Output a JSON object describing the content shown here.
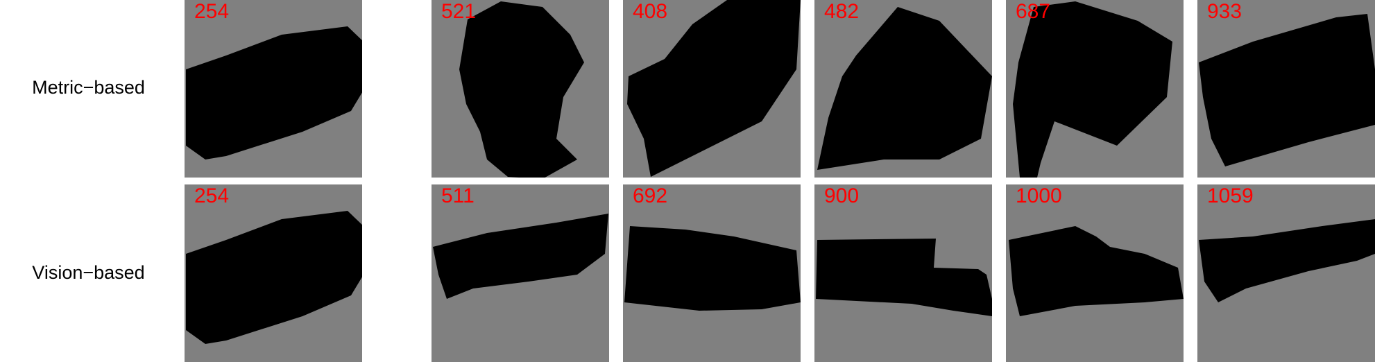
{
  "colors": {
    "tile_background": "#808080",
    "footprint": "#000000",
    "building": "#ffffff",
    "id_text": "#ff0000"
  },
  "rows": [
    {
      "label": "Metric−based",
      "tiles": [
        {
          "id": "254"
        },
        {
          "id": "521"
        },
        {
          "id": "408"
        },
        {
          "id": "482"
        },
        {
          "id": "687"
        },
        {
          "id": "933"
        }
      ]
    },
    {
      "label": "Vision−based",
      "tiles": [
        {
          "id": "254"
        },
        {
          "id": "511"
        },
        {
          "id": "692"
        },
        {
          "id": "900"
        },
        {
          "id": "1000"
        },
        {
          "id": "1059"
        }
      ]
    }
  ]
}
